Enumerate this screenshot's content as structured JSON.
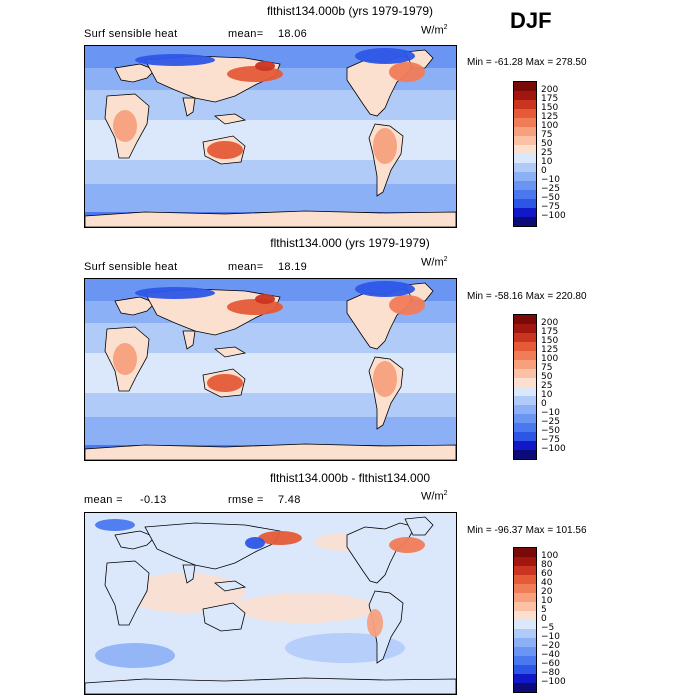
{
  "season": "DJF",
  "units": "W/m",
  "units_exp": "2",
  "palette_main": [
    "#0b0b7a",
    "#1018c8",
    "#2d56e6",
    "#4a78ef",
    "#6a95f2",
    "#8cb0f6",
    "#b1cbf9",
    "#dbe8fc",
    "#fbe0cf",
    "#fac1a4",
    "#f7a07e",
    "#f17c58",
    "#e55a37",
    "#c93520",
    "#a11710",
    "#7a0a08"
  ],
  "palette_diff": [
    "#0b0b7a",
    "#1018c8",
    "#2d56e6",
    "#4a78ef",
    "#6a95f2",
    "#8cb0f6",
    "#b1cbf9",
    "#dbe8fc",
    "#fbe0cf",
    "#fac1a4",
    "#f7a07e",
    "#f17c58",
    "#e55a37",
    "#c93520",
    "#a11710",
    "#7a0a08"
  ],
  "panels": [
    {
      "title": "flthist134.000b (yrs 1979-1979)",
      "left_label": "Surf sensible heat",
      "stat_label": "mean=",
      "stat_value": "18.06",
      "rmse_label": "",
      "rmse_value": "",
      "min_max": "Min = -61.28 Max = 278.50",
      "levels": [
        "200",
        "175",
        "150",
        "125",
        "100",
        "75",
        "50",
        "25",
        "10",
        "0",
        "−10",
        "−25",
        "−50",
        "−75",
        "−100"
      ]
    },
    {
      "title": "flthist134.000 (yrs 1979-1979)",
      "left_label": "Surf sensible heat",
      "stat_label": "mean=",
      "stat_value": "18.19",
      "rmse_label": "",
      "rmse_value": "",
      "min_max": "Min = -58.16 Max = 220.80",
      "levels": [
        "200",
        "175",
        "150",
        "125",
        "100",
        "75",
        "50",
        "25",
        "10",
        "0",
        "−10",
        "−25",
        "−50",
        "−75",
        "−100"
      ]
    },
    {
      "title": "flthist134.000b - flthist134.000",
      "left_label": "mean =",
      "stat_label": "",
      "stat_value": "-0.13",
      "rmse_label": "rmse =",
      "rmse_value": "7.48",
      "min_max": "Min = -96.37 Max = 101.56",
      "levels": [
        "100",
        "80",
        "60",
        "40",
        "20",
        "10",
        "5",
        "0",
        "−5",
        "−10",
        "−20",
        "−40",
        "−60",
        "−80",
        "−100"
      ]
    }
  ]
}
